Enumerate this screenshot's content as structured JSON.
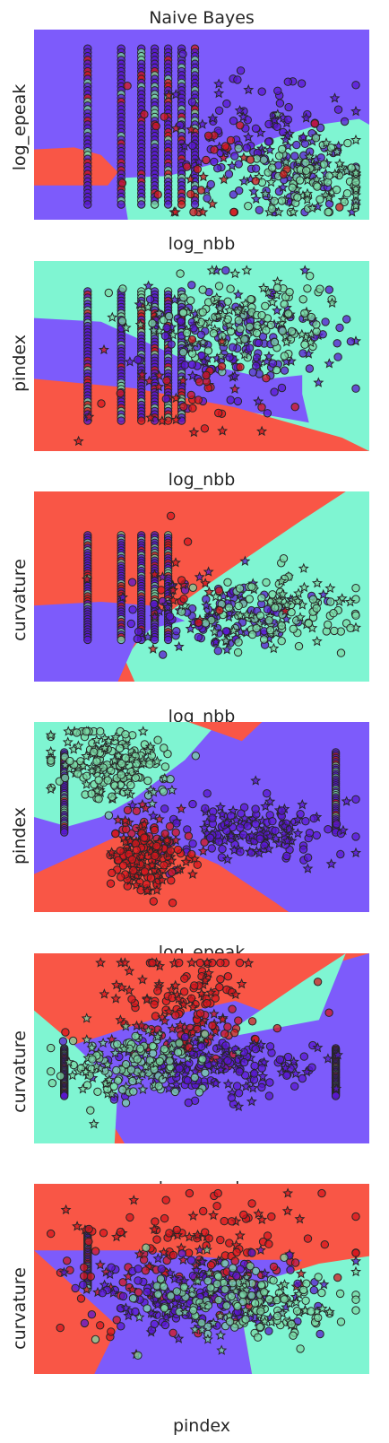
{
  "figure_title": "Naive Bayes",
  "colors": {
    "region_red": "#f95646",
    "region_purple": "#7d5bfb",
    "region_green": "#7ff5d2",
    "point_red": "#d6171d",
    "point_purple": "#5a17d0",
    "point_green": "#7ad8a4",
    "marker_edge": "#262626"
  },
  "chart_data": [
    {
      "type": "scatter",
      "title": "Naive Bayes",
      "xlabel": "log_nbb",
      "ylabel": "log_epeak",
      "grid": false,
      "ticks": "hidden",
      "decision_regions": [
        "red",
        "purple",
        "green"
      ],
      "classes": [
        "red",
        "purple",
        "green"
      ],
      "markers": [
        "circle",
        "star"
      ]
    },
    {
      "type": "scatter",
      "title": "",
      "xlabel": "log_nbb",
      "ylabel": "pindex",
      "grid": false,
      "ticks": "hidden",
      "decision_regions": [
        "red",
        "purple",
        "green"
      ],
      "classes": [
        "red",
        "purple",
        "green"
      ],
      "markers": [
        "circle",
        "star"
      ]
    },
    {
      "type": "scatter",
      "title": "",
      "xlabel": "log_nbb",
      "ylabel": "curvature",
      "grid": false,
      "ticks": "hidden",
      "decision_regions": [
        "red",
        "purple",
        "green"
      ],
      "classes": [
        "red",
        "purple",
        "green"
      ],
      "markers": [
        "circle",
        "star"
      ]
    },
    {
      "type": "scatter",
      "title": "",
      "xlabel": "log_epeak",
      "ylabel": "pindex",
      "grid": false,
      "ticks": "hidden",
      "decision_regions": [
        "red",
        "purple",
        "green"
      ],
      "classes": [
        "red",
        "purple",
        "green"
      ],
      "markers": [
        "circle",
        "star"
      ]
    },
    {
      "type": "scatter",
      "title": "",
      "xlabel": "log_epeak",
      "ylabel": "curvature",
      "grid": false,
      "ticks": "hidden",
      "decision_regions": [
        "red",
        "purple",
        "green"
      ],
      "classes": [
        "red",
        "purple",
        "green"
      ],
      "markers": [
        "circle",
        "star"
      ]
    },
    {
      "type": "scatter",
      "title": "",
      "xlabel": "pindex",
      "ylabel": "curvature",
      "grid": false,
      "ticks": "hidden",
      "decision_regions": [
        "red",
        "purple",
        "green"
      ],
      "classes": [
        "red",
        "purple",
        "green"
      ],
      "markers": [
        "circle",
        "star"
      ]
    }
  ]
}
